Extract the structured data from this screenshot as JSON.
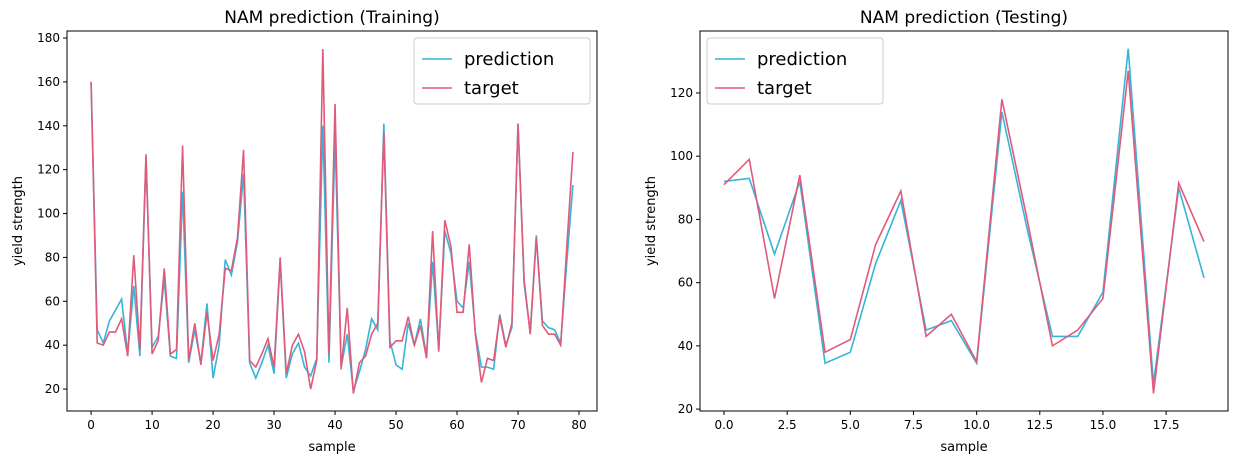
{
  "chart_data": [
    {
      "type": "line",
      "title": "NAM prediction (Training)",
      "xlabel": "sample",
      "ylabel": "yield strength",
      "x": [
        0,
        1,
        2,
        3,
        4,
        5,
        6,
        7,
        8,
        9,
        10,
        11,
        12,
        13,
        14,
        15,
        16,
        17,
        18,
        19,
        20,
        21,
        22,
        23,
        24,
        25,
        26,
        27,
        28,
        29,
        30,
        31,
        32,
        33,
        34,
        35,
        36,
        37,
        38,
        39,
        40,
        41,
        42,
        43,
        44,
        45,
        46,
        47,
        48,
        49,
        50,
        51,
        52,
        53,
        54,
        55,
        56,
        57,
        58,
        59,
        60,
        61,
        62,
        63,
        64,
        65,
        66,
        67,
        68,
        69,
        70,
        71,
        72,
        73,
        74,
        75,
        76,
        77,
        78,
        79
      ],
      "series": [
        {
          "name": "prediction",
          "color": "#36b5d8",
          "values": [
            160,
            47,
            41,
            51,
            56,
            61,
            36,
            67,
            35,
            125,
            39,
            44,
            70,
            35,
            34,
            110,
            32,
            47,
            32,
            59,
            25,
            40,
            79,
            72,
            87,
            118,
            32,
            25,
            32,
            40,
            27,
            78,
            25,
            36,
            41,
            30,
            26,
            34,
            140,
            32,
            135,
            30,
            45,
            19,
            28,
            38,
            52,
            47,
            141,
            42,
            31,
            29,
            50,
            40,
            52,
            35,
            78,
            38,
            92,
            82,
            60,
            57,
            78,
            46,
            30,
            30,
            29,
            54,
            40,
            48,
            141,
            68,
            46,
            90,
            51,
            48,
            47,
            41,
            78,
            113
          ]
        },
        {
          "name": "target",
          "color": "#e05a7a",
          "values": [
            160,
            41,
            40,
            46,
            46,
            52,
            35,
            81,
            38,
            127,
            36,
            42,
            75,
            36,
            38,
            131,
            33,
            50,
            31,
            55,
            33,
            45,
            75,
            74,
            89,
            129,
            33,
            30,
            36,
            43,
            30,
            80,
            27,
            40,
            45,
            37,
            20,
            33,
            175,
            36,
            150,
            29,
            57,
            18,
            32,
            35,
            45,
            50,
            137,
            39,
            42,
            42,
            53,
            40,
            49,
            34,
            92,
            37,
            97,
            85,
            55,
            55,
            86,
            45,
            23,
            34,
            33,
            53,
            39,
            50,
            141,
            70,
            45,
            89,
            49,
            45,
            45,
            40,
            85,
            128
          ]
        }
      ],
      "xlim": [
        -3.95,
        82.95
      ],
      "ylim": [
        10,
        183.2
      ],
      "xticks": [
        0,
        10,
        20,
        30,
        40,
        50,
        60,
        70,
        80
      ],
      "yticks": [
        20,
        40,
        60,
        80,
        100,
        120,
        140,
        160,
        180
      ],
      "legend": "upper right"
    },
    {
      "type": "line",
      "title": "NAM prediction (Testing)",
      "xlabel": "sample",
      "ylabel": "yield strength",
      "x": [
        0,
        1,
        2,
        3,
        4,
        5,
        6,
        7,
        8,
        9,
        10,
        11,
        12,
        13,
        14,
        15,
        16,
        17,
        18,
        19
      ],
      "series": [
        {
          "name": "prediction",
          "color": "#36b5d8",
          "values": [
            92,
            93,
            69,
            92,
            34.5,
            38,
            66,
            86,
            45,
            48,
            34.5,
            114,
            77,
            43,
            43,
            57,
            134,
            28,
            90,
            61.5
          ]
        },
        {
          "name": "target",
          "color": "#e05a7a",
          "values": [
            91,
            99,
            55,
            94,
            38,
            42,
            72,
            89,
            43,
            50,
            35,
            118,
            80,
            40,
            45,
            55,
            127,
            25,
            91.5,
            73
          ]
        }
      ],
      "xlim": [
        -0.95,
        19.95
      ],
      "ylim": [
        19.4,
        139.6
      ],
      "xticks": [
        {
          "value": 0,
          "label": "0.0"
        },
        2.5,
        {
          "value": 5,
          "label": "5.0"
        },
        7.5,
        {
          "value": 10,
          "label": "10.0"
        },
        12.5,
        {
          "value": 15,
          "label": "15.0"
        },
        17.5
      ],
      "yticks": [
        20,
        40,
        60,
        80,
        100,
        120
      ],
      "legend": "upper left"
    }
  ]
}
